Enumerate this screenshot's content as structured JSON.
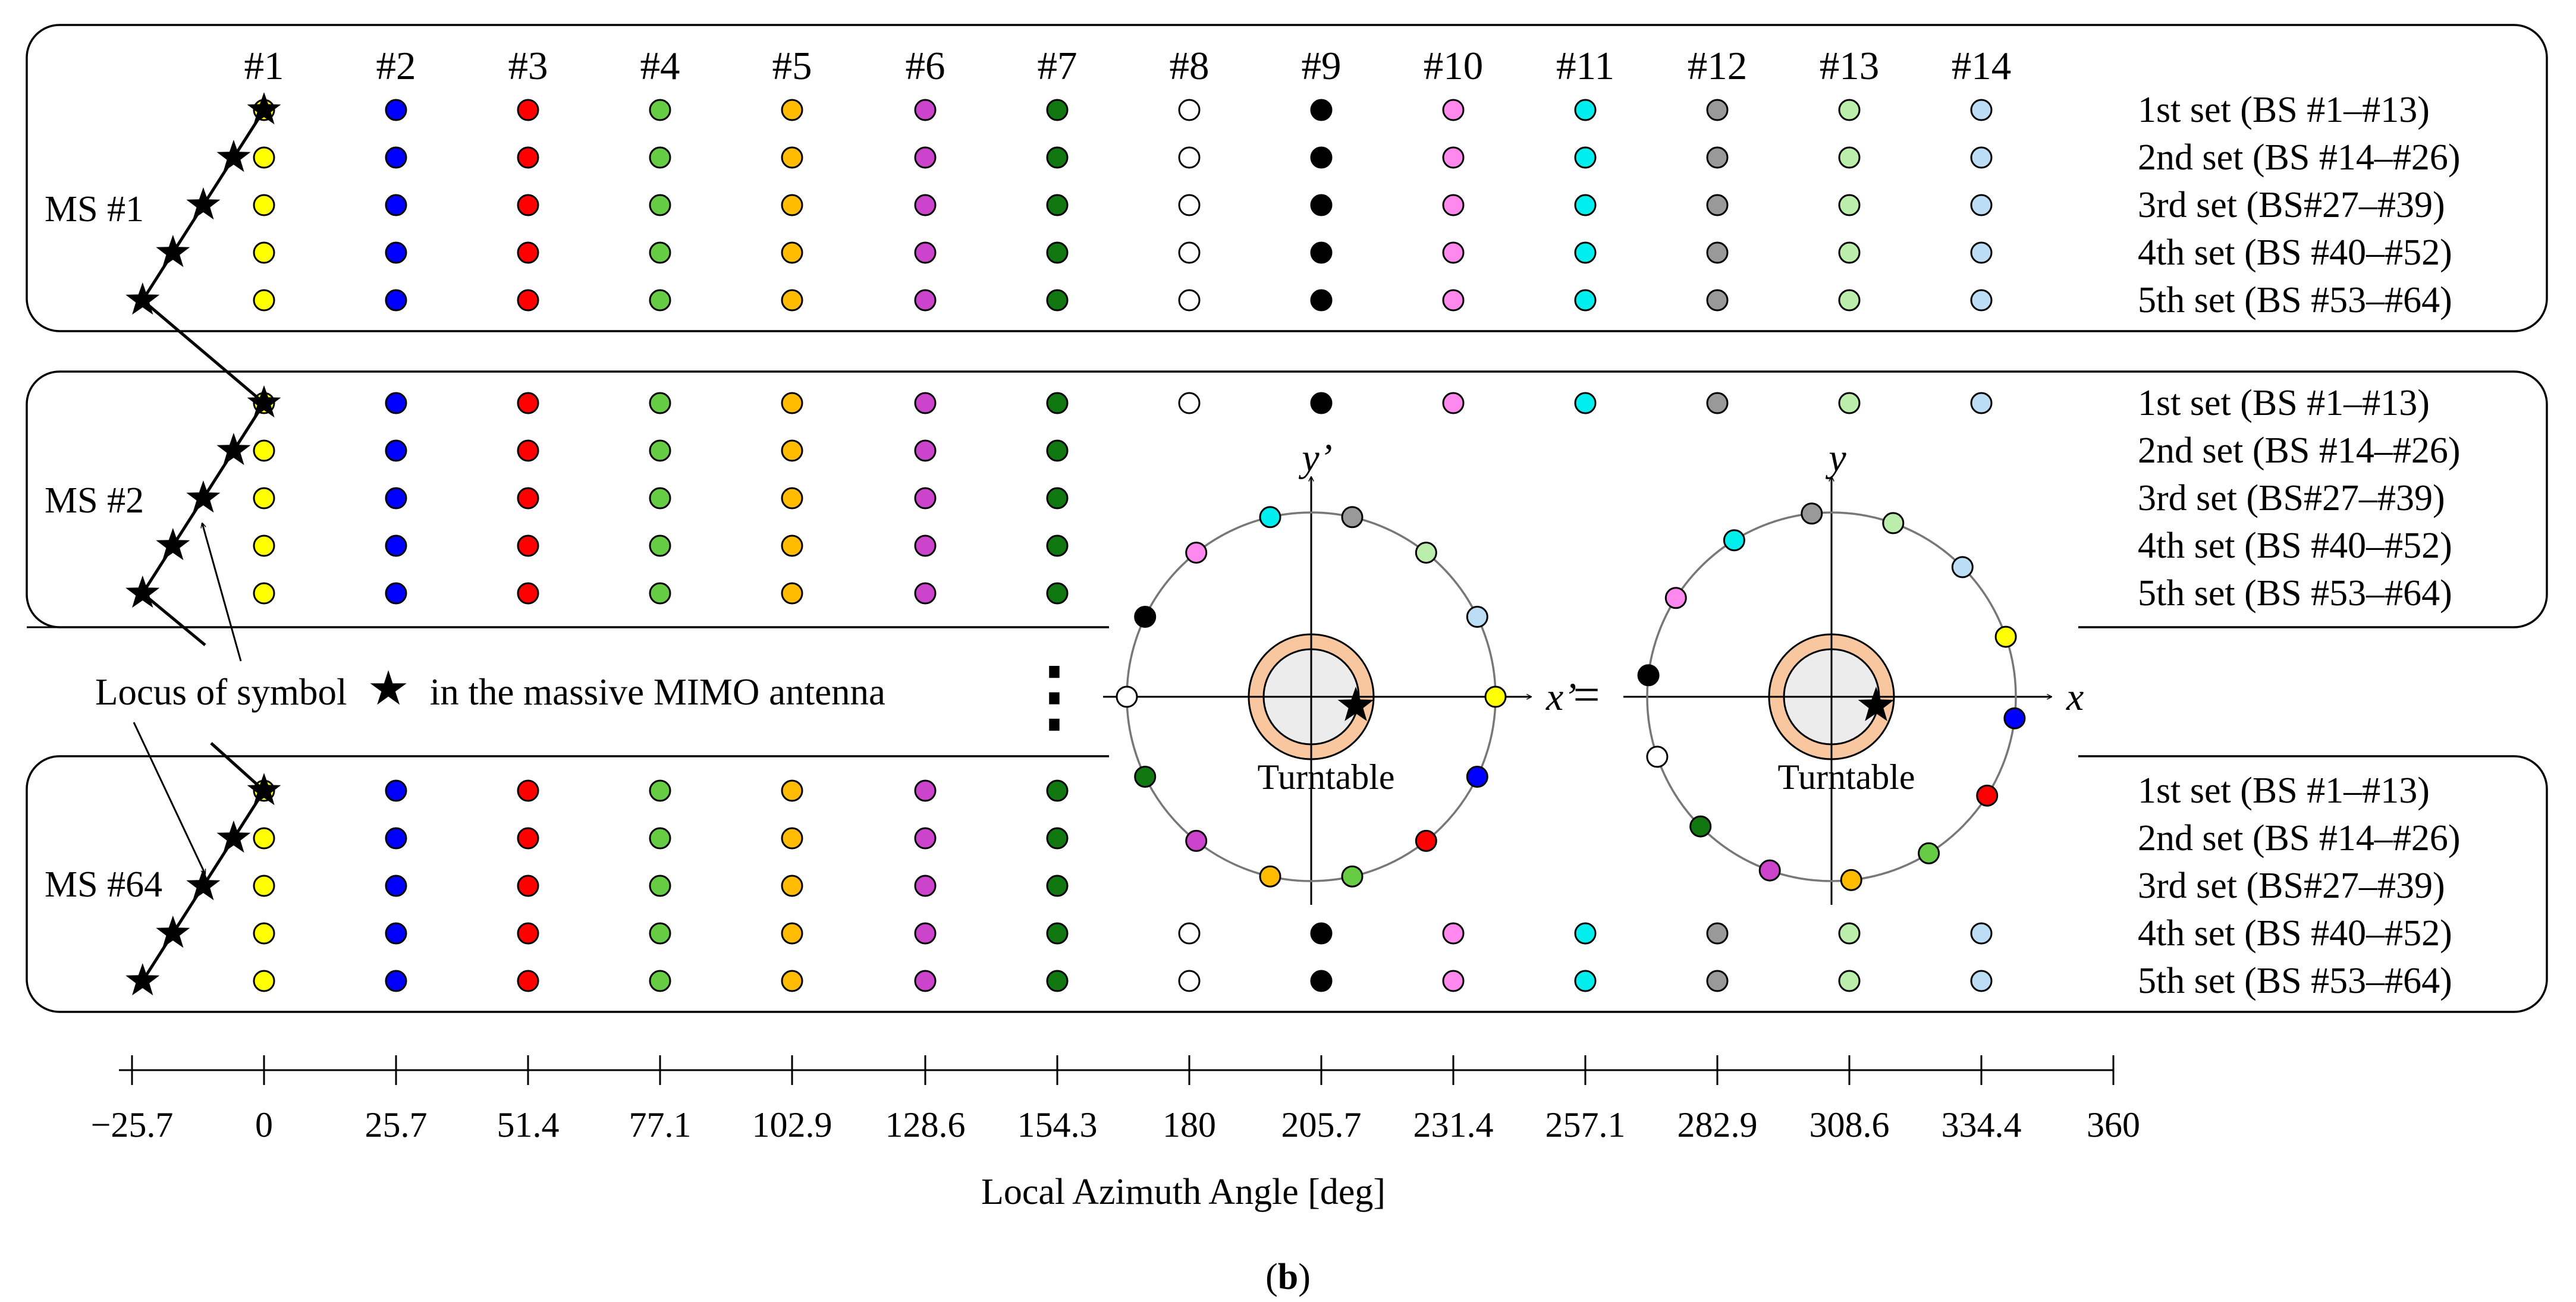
{
  "figure": {
    "caption_open": "(",
    "caption_letter": "b",
    "caption_close": ")",
    "locus_label_prefix": "Locus of symbol",
    "locus_label_suffix": "in the massive MIMO antenna",
    "star_symbol": "★",
    "ellipsis": "⋮",
    "equals": "="
  },
  "base_stations": [
    "#1",
    "#2",
    "#3",
    "#4",
    "#5",
    "#6",
    "#7",
    "#8",
    "#9",
    "#10",
    "#11",
    "#12",
    "#13",
    "#14"
  ],
  "bs_colors": [
    "#ffff00",
    "#0000ff",
    "#ff0000",
    "#66cc44",
    "#ffbb00",
    "#cc44cc",
    "#117711",
    "#ffffff",
    "#000000",
    "#ff88ee",
    "#00eeee",
    "#999999",
    "#bbeeaa",
    "#bbddf5"
  ],
  "set_labels": [
    "1st set (BS #1–#13)",
    "2nd set (BS #14–#26)",
    "3rd set (BS#27–#39)",
    "4th set (BS #40–#52)",
    "5th set (BS #53–#64)"
  ],
  "panels": [
    {
      "label": "MS #1"
    },
    {
      "label": "MS #2"
    },
    {
      "label": "MS #64"
    }
  ],
  "axis": {
    "label": "Local Azimuth Angle [deg]",
    "ticks": [
      "−25.7",
      "0",
      "25.7",
      "51.4",
      "77.1",
      "102.9",
      "128.6",
      "154.3",
      "180",
      "205.7",
      "231.4",
      "257.1",
      "282.9",
      "308.6",
      "334.4",
      "360"
    ]
  },
  "insets": [
    {
      "y_label": "y’",
      "x_label": "x’",
      "turntable_label": "Turntable"
    },
    {
      "y_label": "y",
      "x_label": "x",
      "turntable_label": "Turntable"
    }
  ]
}
